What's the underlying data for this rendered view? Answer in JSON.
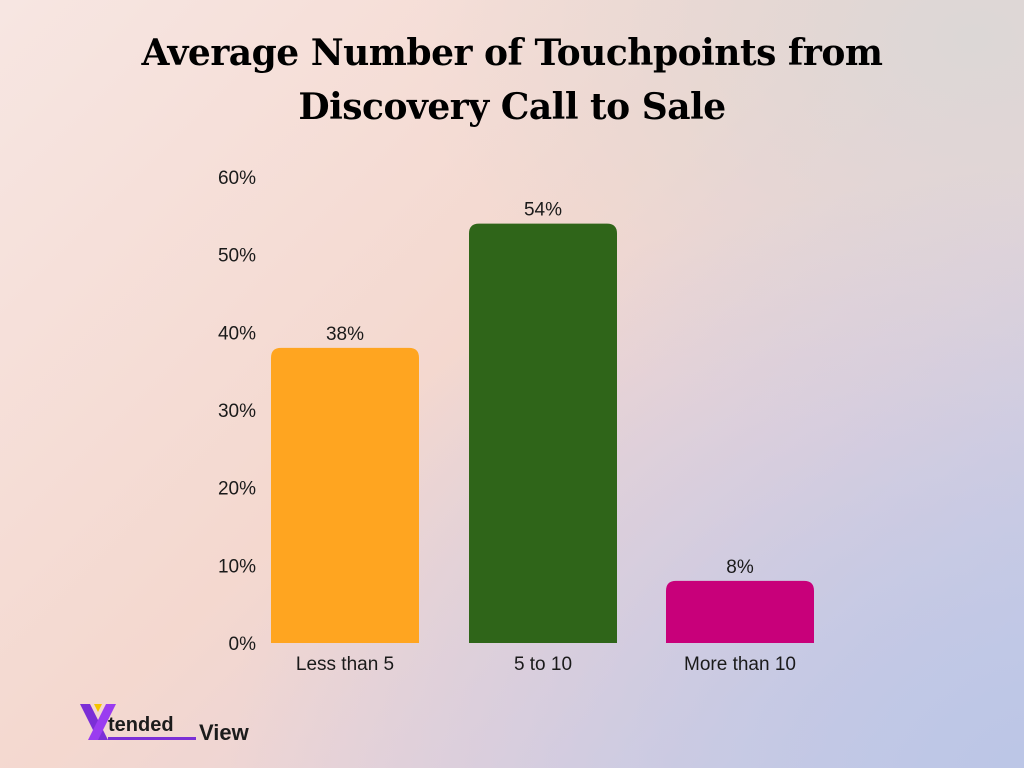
{
  "chart_data": {
    "type": "bar",
    "title": "Average Number of Touchpoints from Discovery Call to Sale",
    "title_lines": [
      "Average Number of Touchpoints from",
      "Discovery Call to Sale"
    ],
    "categories": [
      "Less than 5",
      "5 to 10",
      "More than 10"
    ],
    "values": [
      38,
      54,
      8
    ],
    "value_labels": [
      "38%",
      "54%",
      "8%"
    ],
    "colors": [
      "#ffa520",
      "#2f6519",
      "#c8007a"
    ],
    "ylim": [
      0,
      60
    ],
    "yticks": [
      0,
      10,
      20,
      30,
      40,
      50,
      60
    ],
    "ytick_labels": [
      "0%",
      "10%",
      "20%",
      "30%",
      "40%",
      "50%",
      "60%"
    ],
    "xlabel": "",
    "ylabel": "",
    "grid": false,
    "legend": false
  },
  "logo": {
    "part1": "tended",
    "part2": "View",
    "colors": [
      "#8a2be2",
      "#f5c400"
    ]
  }
}
